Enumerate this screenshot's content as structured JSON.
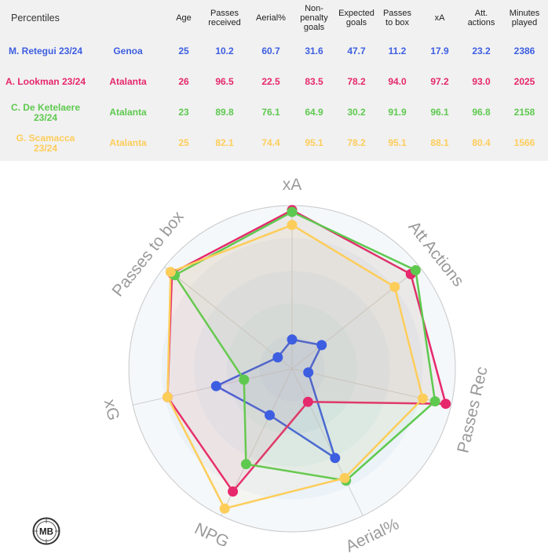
{
  "table": {
    "title": "Percentiles",
    "columns": [
      "Age",
      "Passes received",
      "Aerial%",
      "Non-penalty goals",
      "Expected goals",
      "Passes to box",
      "xA",
      "Att. actions",
      "Minutes played"
    ],
    "rows": [
      {
        "player": "M. Retegui 23/24",
        "team": "Genoa",
        "color": "#3d5ee1",
        "values": [
          "25",
          "10.2",
          "60.7",
          "31.6",
          "47.7",
          "11.2",
          "17.9",
          "23.2",
          "2386"
        ]
      },
      {
        "player": "A. Lookman 23/24",
        "team": "Atalanta",
        "color": "#e6286c",
        "values": [
          "26",
          "96.5",
          "22.5",
          "83.5",
          "78.2",
          "94.0",
          "97.2",
          "93.0",
          "2025"
        ]
      },
      {
        "player": "C. De Ketelaere 23/24",
        "team": "Atalanta",
        "color": "#5ec94f",
        "values": [
          "23",
          "89.8",
          "76.1",
          "64.9",
          "30.2",
          "91.9",
          "96.1",
          "96.8",
          "2158"
        ]
      },
      {
        "player": "G. Scamacca 23/24",
        "team": "Atalanta",
        "color": "#fdcd5a",
        "values": [
          "25",
          "82.1",
          "74.4",
          "95.1",
          "78.2",
          "95.1",
          "88.1",
          "80.4",
          "1566"
        ]
      }
    ]
  },
  "chart_data": {
    "type": "radar",
    "axes": [
      "xA",
      "Att Actions",
      "Passes Rec",
      "Aerial%",
      "NPG",
      "xG",
      "Passes to box"
    ],
    "range": [
      0,
      100
    ],
    "series": [
      {
        "name": "M. Retegui 23/24",
        "color": "#3d5ee1",
        "values": [
          17.9,
          23.2,
          10.2,
          60.7,
          31.6,
          47.7,
          11.2
        ]
      },
      {
        "name": "A. Lookman 23/24",
        "color": "#e6286c",
        "values": [
          97.2,
          93.0,
          96.5,
          22.5,
          83.5,
          78.2,
          94.0
        ]
      },
      {
        "name": "C. De Ketelaere 23/24",
        "color": "#5ec94f",
        "values": [
          96.1,
          96.8,
          89.8,
          76.1,
          64.9,
          30.2,
          91.9
        ]
      },
      {
        "name": "G. Scamacca 23/24",
        "color": "#fdcd5a",
        "values": [
          88.1,
          80.4,
          82.1,
          74.4,
          95.1,
          78.2,
          95.1
        ]
      }
    ]
  },
  "logo": {
    "text": "MB"
  }
}
